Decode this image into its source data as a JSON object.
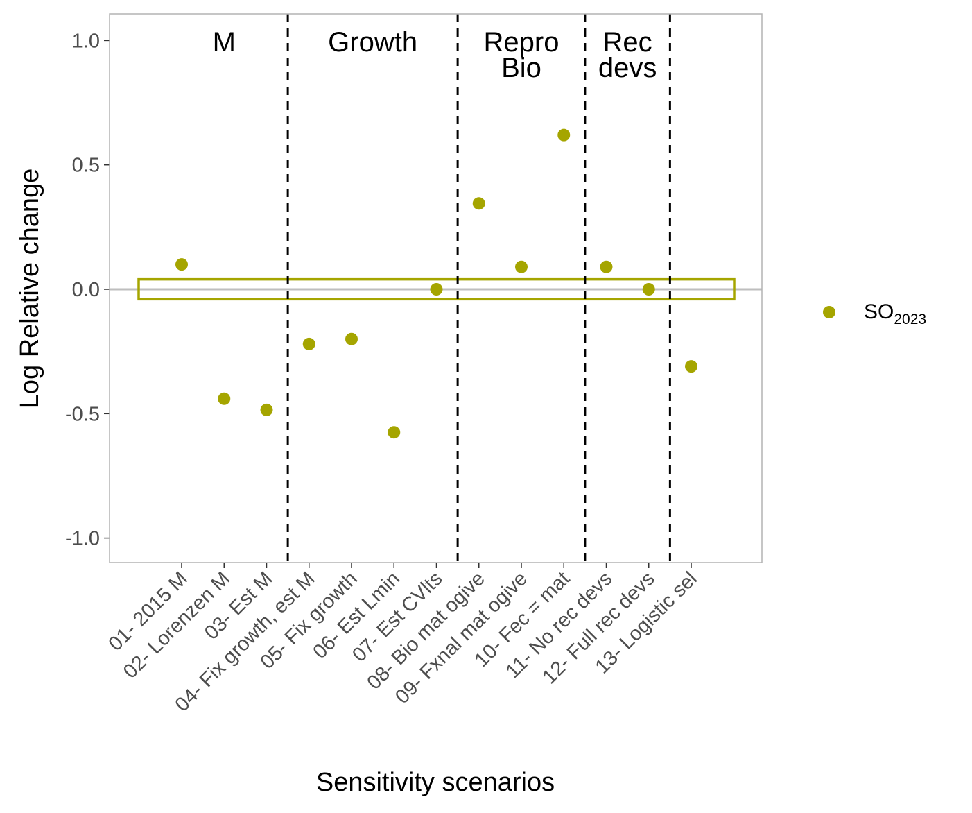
{
  "chart_data": {
    "type": "scatter",
    "xlabel": "Sensitivity scenarios",
    "ylabel": "Log Relative change",
    "ylim": [
      -1.1,
      1.1
    ],
    "yticks": [
      1.0,
      0.5,
      0.0,
      -0.5,
      -1.0
    ],
    "ytick_labels": [
      "1.0",
      "0.5",
      "0.0",
      "-0.5",
      "-1.0"
    ],
    "categories": [
      "01- 2015 M",
      "02- Lorenzen M",
      "03- Est M",
      "04- Fix growth, est M",
      "05- Fix growth",
      "06- Est Lmin",
      "07- Est CVlts",
      "08- Bio mat ogive",
      "09- Fxnal mat ogive",
      "10- Fec = mat",
      "11- No rec devs",
      "12- Full rec devs",
      "13- Logistic sel"
    ],
    "series": [
      {
        "name": "SO",
        "name_sub": "2023",
        "color": "#a5a500",
        "values": [
          0.1,
          -0.44,
          -0.485,
          -0.22,
          -0.2,
          -0.575,
          0.0,
          0.345,
          0.09,
          0.62,
          0.09,
          0.0,
          -0.31
        ]
      }
    ],
    "reference_line": {
      "y": 0.0,
      "color": "#bebebe"
    },
    "reference_band": {
      "ymin": -0.04,
      "ymax": 0.04,
      "color": "#a5a500"
    },
    "group_dividers_after_index": [
      2,
      6,
      9,
      11
    ],
    "groups": [
      {
        "lines": [
          "M"
        ],
        "center_index": 1
      },
      {
        "lines": [
          "Growth"
        ],
        "center_index": 4.5
      },
      {
        "lines": [
          "Repro",
          "Bio"
        ],
        "center_index": 8
      },
      {
        "lines": [
          "Rec",
          "devs"
        ],
        "center_index": 10.5
      }
    ],
    "grid": false,
    "legend_position": "right"
  }
}
